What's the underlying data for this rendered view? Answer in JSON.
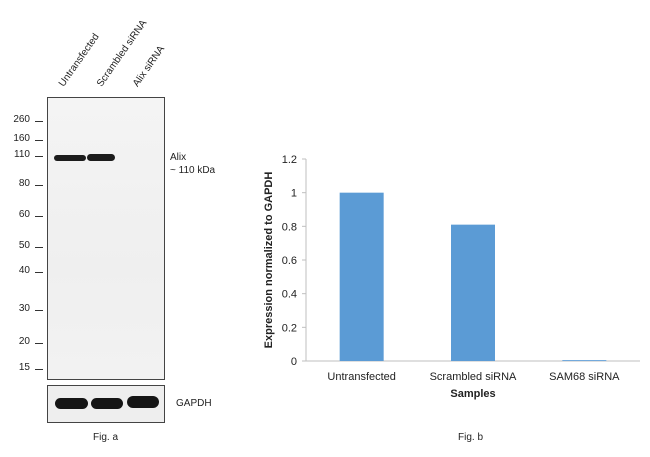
{
  "western_blot": {
    "lanes": [
      "Untransfected",
      "Scrambled siRNA",
      "Alix siRNA"
    ],
    "mw_markers": [
      "260",
      "160",
      "110",
      "80",
      "60",
      "50",
      "40",
      "30",
      "20",
      "15"
    ],
    "band_label_line1": "Alix",
    "band_label_line2": "~ 110 kDa",
    "loading_control": "GAPDH",
    "caption": "Fig. a"
  },
  "chart_data": {
    "type": "bar",
    "categories": [
      "Untransfected",
      "Scrambled siRNA",
      "SAM68 siRNA"
    ],
    "values": [
      1.0,
      0.81,
      0.005
    ],
    "title": "",
    "xlabel": "Samples",
    "ylabel": "Expression normalized to GAPDH",
    "ylim": [
      0,
      1.2
    ],
    "yticks": [
      "0",
      "0.2",
      "0.4",
      "0.6",
      "0.8",
      "1",
      "1.2"
    ],
    "grid": false,
    "bar_color": "#5b9bd5",
    "caption": "Fig. b"
  }
}
